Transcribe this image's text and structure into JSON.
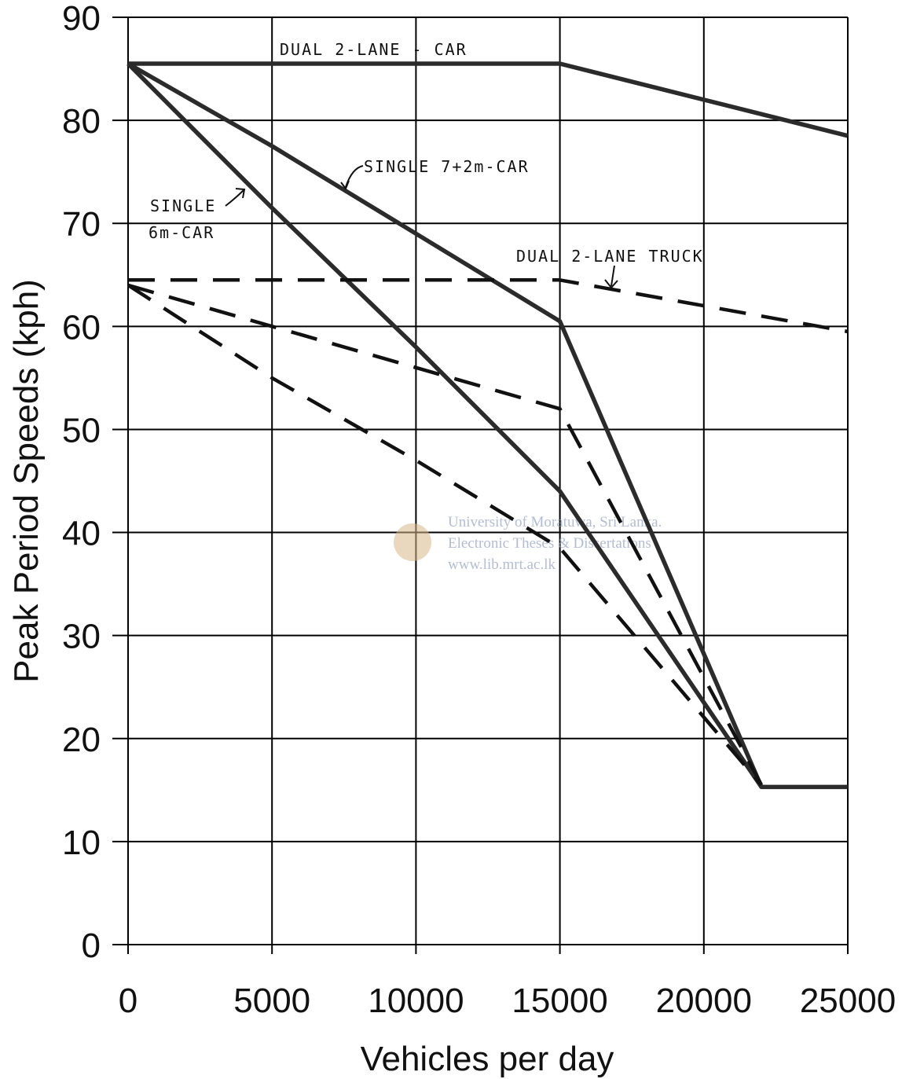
{
  "chart_data": {
    "type": "line",
    "title": "",
    "xlabel": "Vehicles per day",
    "ylabel": "Peak Period Speeds (kph)",
    "xlim": [
      0,
      25000
    ],
    "ylim": [
      0,
      90
    ],
    "xticks": [
      0,
      5000,
      10000,
      15000,
      20000,
      25000
    ],
    "yticks": [
      0,
      10,
      20,
      30,
      40,
      50,
      60,
      70,
      80,
      90
    ],
    "grid": true,
    "series": [
      {
        "name": "DUAL 2-LANE - CAR",
        "style": "solid",
        "color": "#2b2b2b",
        "x": [
          0,
          15000,
          25000
        ],
        "y": [
          85.5,
          85.5,
          78.5
        ]
      },
      {
        "name": "SINGLE 7+2m-CAR",
        "style": "solid",
        "color": "#2b2b2b",
        "x": [
          0,
          5000,
          10000,
          15000,
          22000,
          25000
        ],
        "y": [
          85.5,
          77.5,
          69,
          60.5,
          15.3,
          15.3
        ]
      },
      {
        "name": "SINGLE 6m-CAR",
        "style": "solid",
        "color": "#2b2b2b",
        "x": [
          0,
          5000,
          10000,
          15000,
          22000
        ],
        "y": [
          85.5,
          71.5,
          58,
          44,
          15.3
        ]
      },
      {
        "name": "DUAL 2-LANE TRUCK",
        "style": "dashed",
        "color": "#111111",
        "x": [
          0,
          15000,
          25000
        ],
        "y": [
          64.5,
          64.5,
          59.5
        ]
      },
      {
        "name": "",
        "style": "dashed",
        "color": "#111111",
        "x": [
          0,
          5000,
          10000,
          15000,
          22000
        ],
        "y": [
          64,
          60,
          56,
          52,
          15.5
        ]
      },
      {
        "name": "",
        "style": "dashed",
        "color": "#111111",
        "x": [
          0,
          5000,
          10000,
          15000,
          22000
        ],
        "y": [
          64,
          55,
          47,
          38.5,
          15.5
        ]
      }
    ],
    "annotations": [
      {
        "text": "DUAL 2-LANE - CAR"
      },
      {
        "text": "SINGLE 7+2m-CAR"
      },
      {
        "text": "SINGLE"
      },
      {
        "text": "6m-CAR"
      },
      {
        "text": "DUAL 2-LANE TRUCK"
      }
    ],
    "watermark": {
      "line1": "University of Moratuwa, Sri Lanka.",
      "line2": "Electronic Theses & Dissertations",
      "line3": "www.lib.mrt.ac.lk"
    }
  }
}
